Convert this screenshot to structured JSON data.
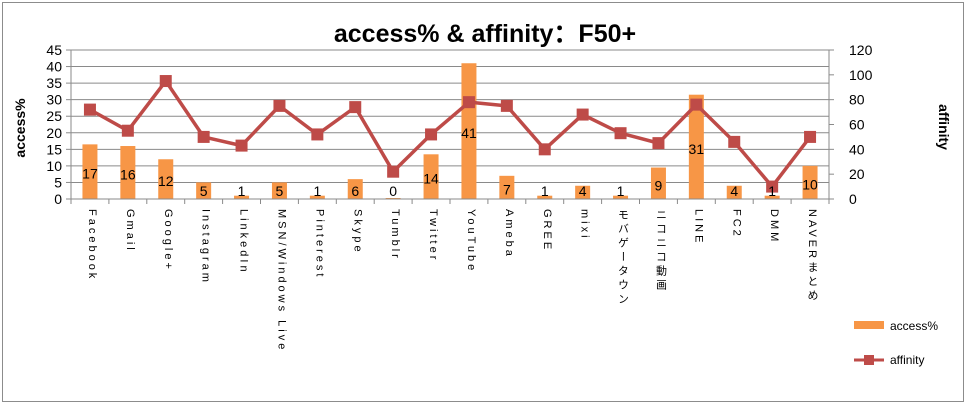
{
  "chart_data": {
    "type": "bar",
    "title": "access% & affinity：F50+",
    "ylabel": "access%",
    "y2label": "affinity",
    "ylim": [
      0,
      45
    ],
    "y2lim": [
      0,
      120
    ],
    "yticks": [
      0,
      5,
      10,
      15,
      20,
      25,
      30,
      35,
      40,
      45
    ],
    "y2ticks": [
      0,
      20,
      40,
      60,
      80,
      100,
      120
    ],
    "grid": true,
    "legend_position": "right",
    "categories": [
      "Facebook",
      "Gmail",
      "Google+",
      "Instagram",
      "LinkedIn",
      "MSN/Windows Live",
      "Pinterest",
      "Skype",
      "Tumblr",
      "Twitter",
      "YouTube",
      "Ameba",
      "GREE",
      "mixi",
      "モバゲータウン",
      "ニコニコ動画",
      "LINE",
      "FC2",
      "DMM",
      "NAVERまとめ"
    ],
    "series": [
      {
        "name": "access%",
        "kind": "bar",
        "axis": "left",
        "color": "#f79646",
        "values": [
          16.5,
          16,
          12,
          5,
          1,
          5,
          1,
          6,
          0.3,
          13.5,
          41,
          7,
          1,
          4,
          1,
          9.5,
          31.5,
          4,
          1,
          10
        ],
        "labels": [
          "17",
          "16",
          "12",
          "5",
          "1",
          "5",
          "1",
          "6",
          "0",
          "14",
          "41",
          "7",
          "1",
          "4",
          "1",
          "9",
          "31",
          "4",
          "1",
          "10"
        ]
      },
      {
        "name": "affinity",
        "kind": "line",
        "axis": "right",
        "color": "#be4b48",
        "values": [
          72,
          55,
          95,
          50,
          43,
          75,
          52,
          74,
          22,
          52,
          78,
          75,
          40,
          68,
          53,
          45,
          76,
          46,
          10,
          50
        ]
      }
    ]
  }
}
